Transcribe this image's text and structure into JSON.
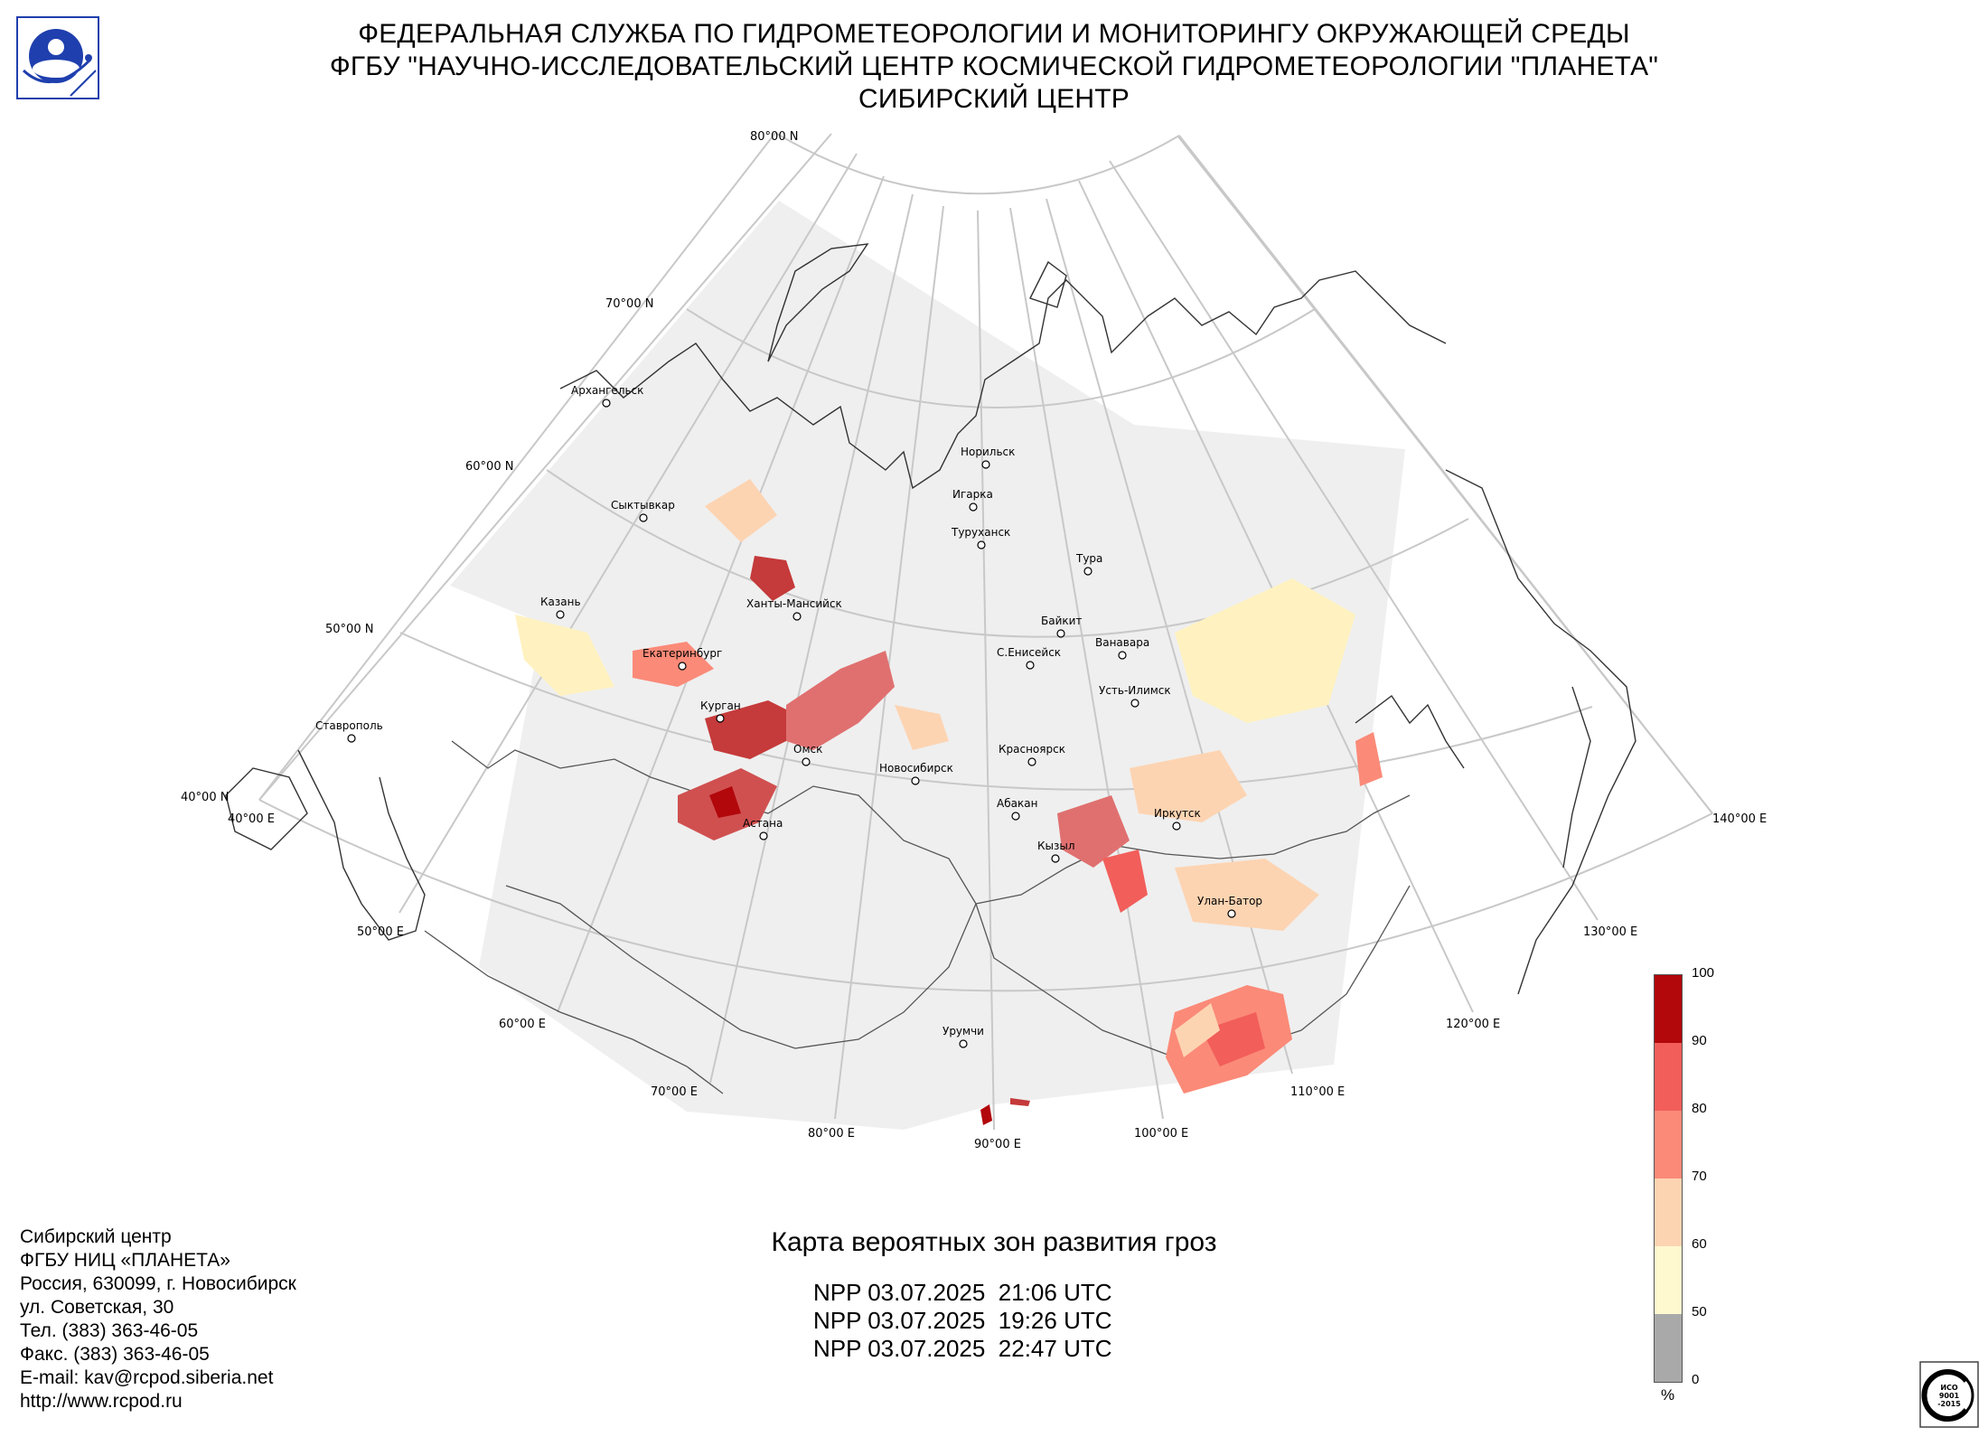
{
  "header": {
    "line1": "ФЕДЕРАЛЬНАЯ СЛУЖБА ПО ГИДРОМЕТЕОРОЛОГИИ И МОНИТОРИНГУ ОКРУЖАЮЩЕЙ СРЕДЫ",
    "line2": "ФГБУ \"НАУЧНО-ИССЛЕДОВАТЕЛЬСКИЙ ЦЕНТР КОСМИЧЕСКОЙ ГИДРОМЕТЕОРОЛОГИИ \"ПЛАНЕТА\"",
    "line3": "СИБИРСКИЙ ЦЕНТР"
  },
  "graticule": {
    "latitudes": [
      {
        "label": "80°00 N"
      },
      {
        "label": "70°00 N"
      },
      {
        "label": "60°00 N"
      },
      {
        "label": "50°00 N"
      },
      {
        "label": "40°00 N"
      }
    ],
    "longitudes": [
      {
        "label": "40°00 E"
      },
      {
        "label": "50°00 E"
      },
      {
        "label": "60°00 E"
      },
      {
        "label": "70°00 E"
      },
      {
        "label": "80°00 E"
      },
      {
        "label": "90°00 E"
      },
      {
        "label": "100°00 E"
      },
      {
        "label": "110°00 E"
      },
      {
        "label": "120°00 E"
      },
      {
        "label": "130°00 E"
      },
      {
        "label": "140°00 E"
      }
    ]
  },
  "cities": [
    {
      "name": "Архангельск"
    },
    {
      "name": "Сыктывкар"
    },
    {
      "name": "Казань"
    },
    {
      "name": "Ханты-Мансийск"
    },
    {
      "name": "Екатеринбург"
    },
    {
      "name": "Курган"
    },
    {
      "name": "Омск"
    },
    {
      "name": "Астана"
    },
    {
      "name": "Ставрополь"
    },
    {
      "name": "Новосибирск"
    },
    {
      "name": "Норильск"
    },
    {
      "name": "Игарка"
    },
    {
      "name": "Туруханск"
    },
    {
      "name": "Тура"
    },
    {
      "name": "Байкит"
    },
    {
      "name": "Ванавара"
    },
    {
      "name": "С.Енисейск"
    },
    {
      "name": "Усть-Илимск"
    },
    {
      "name": "Красноярск"
    },
    {
      "name": "Абакан"
    },
    {
      "name": "Иркутск"
    },
    {
      "name": "Кызыл"
    },
    {
      "name": "Улан-Батор"
    },
    {
      "name": "Урумчи"
    }
  ],
  "caption": "Карта вероятных зон развития гроз",
  "passes": [
    "NPP 03.07.2025  21:06 UTC",
    "NPP 03.07.2025  19:26 UTC",
    "NPP 03.07.2025  22:47 UTC"
  ],
  "legend": {
    "unit": "%",
    "ticks": [
      "100",
      "90",
      "80",
      "70",
      "60",
      "50",
      "0"
    ],
    "colors": [
      "#b2070b",
      "#f25e5a",
      "#fb8a78",
      "#fdd4b2",
      "#fff9d0",
      "#a9a9a9"
    ]
  },
  "footer": [
    "Сибирский центр",
    "ФГБУ НИЦ «ПЛАНЕТА»",
    "Россия, 630099, г. Новосибирск",
    "ул. Советская, 30",
    "Тел. (383) 363-46-05",
    "Факс. (383) 363-46-05",
    "E-mail: kav@rcpod.siberia.net",
    "http://www.rcpod.ru"
  ],
  "iso_badge": {
    "lines": [
      "ИСО",
      "9001",
      "-2015"
    ]
  },
  "colors": {
    "coverage": "#efefef",
    "graticule": "#c8c8c8",
    "coast": "#333333",
    "border": "#555555",
    "logo_blue": "#1f3fae"
  }
}
